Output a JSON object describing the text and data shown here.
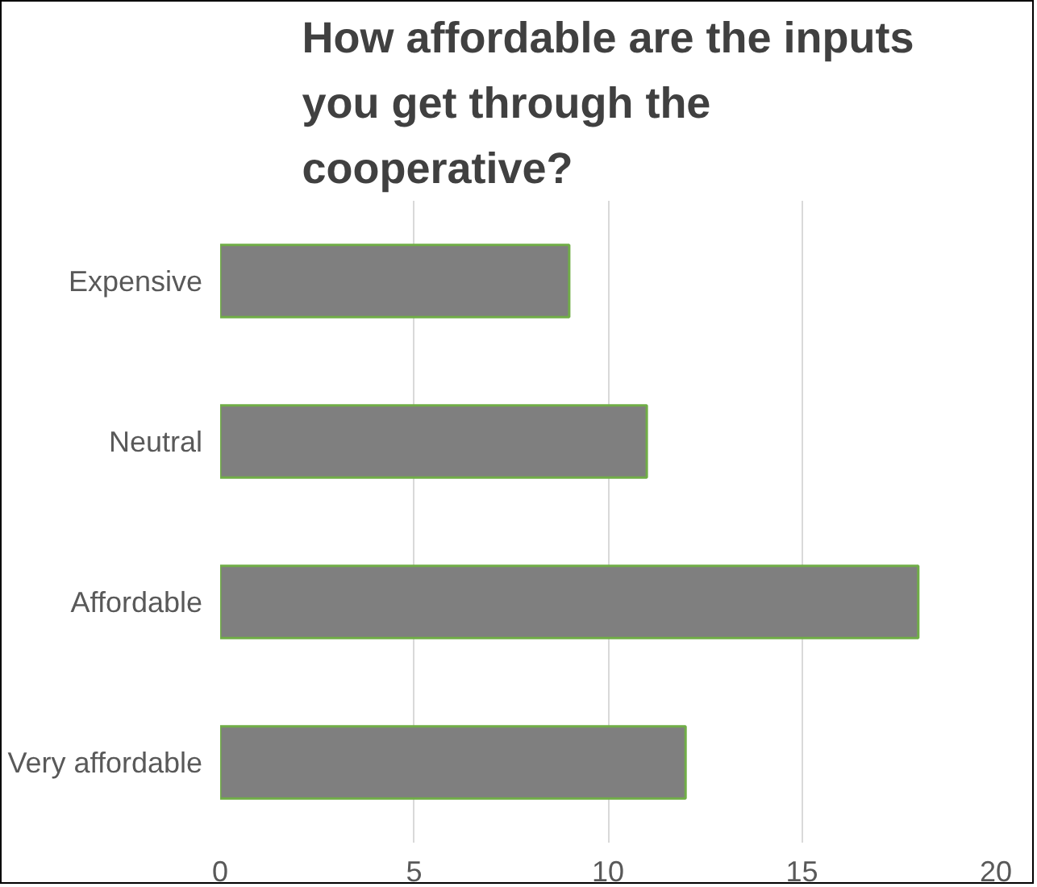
{
  "chart_data": {
    "type": "bar",
    "orientation": "horizontal",
    "title": "How affordable are the inputs you get through the cooperative?",
    "categories": [
      "Expensive",
      "Neutral",
      "Affordable",
      "Very affordable"
    ],
    "values": [
      9,
      11,
      18,
      12
    ],
    "color": "#7f7f7f",
    "xlim": [
      0,
      20
    ],
    "xticks": [
      0,
      5,
      10,
      15,
      20
    ],
    "grid": "x"
  }
}
